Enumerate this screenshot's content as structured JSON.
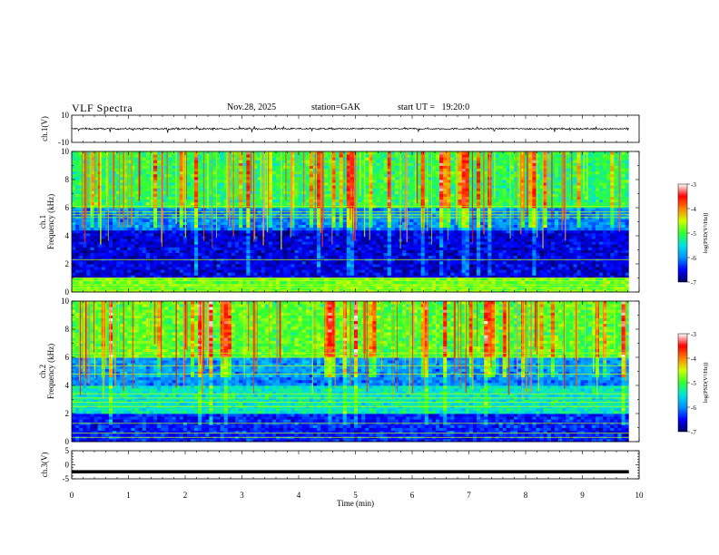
{
  "header": {
    "title": "VLF Spectra",
    "date": "Nov.28, 2025",
    "station": "station=GAK",
    "start_ut": "start UT =   19:20:0"
  },
  "colorbar": {
    "label": "log(PSD(V²/Hz))",
    "ticks": [
      "-3",
      "-4",
      "-5",
      "-6",
      "-7"
    ],
    "stops": [
      "#000060",
      "#0000ff",
      "#0090ff",
      "#00e0e0",
      "#30ff30",
      "#d0ff00",
      "#ff8000",
      "#ff0000",
      "#ffffff"
    ]
  },
  "chart_data": [
    {
      "type": "line",
      "name": "ch.1 waveform",
      "ylabel": "ch.1(V)",
      "ylim": [
        -10,
        10
      ],
      "y_tick_labels": [
        "10",
        "-10"
      ],
      "baseline": 0,
      "approx_amplitude": 1
    },
    {
      "type": "heatmap",
      "name": "ch.1 spectrogram",
      "ylabel": "ch.1 Frequency (kHz)",
      "ylim": [
        0,
        10
      ],
      "y_tick_labels": [
        "0",
        "2",
        "4",
        "6",
        "8",
        "10"
      ],
      "zlim": [
        -7,
        -3
      ],
      "bands_khz": [
        {
          "range": [
            0,
            1
          ],
          "level": -4.8
        },
        {
          "range": [
            1,
            4.5
          ],
          "level": -6.6
        },
        {
          "range": [
            4.5,
            6
          ],
          "level": -6.1
        },
        {
          "range": [
            6,
            10
          ],
          "level": -5.2
        }
      ],
      "bright_lines_khz": [
        0.1,
        0.3,
        0.5,
        0.8,
        1.0,
        2.3,
        5.3,
        5.5,
        5.7,
        6.1
      ]
    },
    {
      "type": "heatmap",
      "name": "ch.2 spectrogram",
      "ylabel": "ch.2 Frequency (kHz)",
      "ylim": [
        0,
        10
      ],
      "y_tick_labels": [
        "0",
        "2",
        "4",
        "6",
        "8",
        "10"
      ],
      "zlim": [
        -7,
        -3
      ],
      "bands_khz": [
        {
          "range": [
            0,
            2
          ],
          "level": -6.4
        },
        {
          "range": [
            2,
            4
          ],
          "level": -5.4
        },
        {
          "range": [
            4,
            6
          ],
          "level": -6.0
        },
        {
          "range": [
            6,
            10
          ],
          "level": -5.0
        }
      ],
      "bright_lines_khz": [
        0.3,
        0.6,
        1.3,
        2.5,
        2.8,
        3.1,
        3.4,
        4.8,
        5.4,
        6.0,
        6.3
      ]
    },
    {
      "type": "line",
      "name": "ch.3 waveform",
      "ylabel": "ch.3(V)",
      "ylim": [
        -5,
        5
      ],
      "y_tick_labels": [
        "5",
        "0",
        "-5"
      ],
      "baseline": -2.5
    }
  ],
  "x_axis": {
    "label": "Time (min)",
    "xlim": [
      0,
      10
    ],
    "tick_labels": [
      "0",
      "1",
      "2",
      "3",
      "4",
      "5",
      "6",
      "7",
      "8",
      "9",
      "10"
    ],
    "data_end_min": 9.82
  }
}
